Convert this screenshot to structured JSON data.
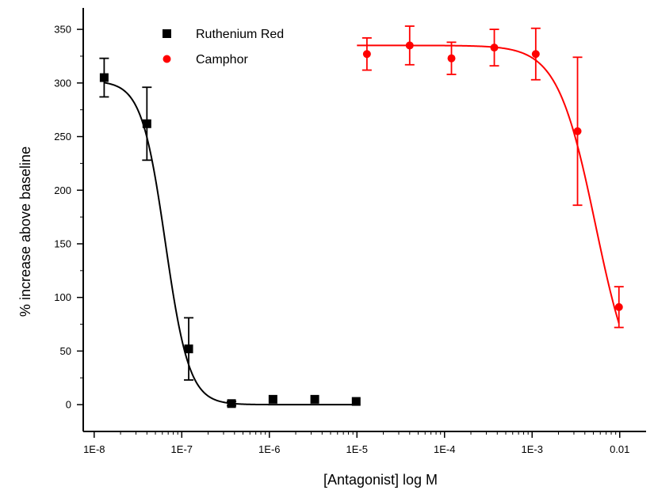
{
  "chart_data": {
    "type": "scatter",
    "title": "",
    "xlabel": "[Antagonist] log M",
    "ylabel": "% increase above baseline",
    "x_scale": "log",
    "xlim": [
      7.5e-09,
      0.02
    ],
    "ylim": [
      -25,
      370
    ],
    "x_ticks": [
      1e-08,
      1e-07,
      1e-06,
      1e-05,
      0.0001,
      0.001,
      0.01
    ],
    "x_tick_labels": [
      "1E-8",
      "1E-7",
      "1E-6",
      "1E-5",
      "1E-4",
      "1E-3",
      "0.01"
    ],
    "y_ticks": [
      0,
      50,
      100,
      150,
      200,
      250,
      300,
      350
    ],
    "y_tick_labels": [
      "0",
      "50",
      "100",
      "150",
      "200",
      "250",
      "300",
      "350"
    ],
    "grid": false,
    "legend_position": "top-left",
    "series": [
      {
        "name": "Ruthenium Red",
        "color": "#000000",
        "marker": "square",
        "points": [
          {
            "x": 1.3e-08,
            "y": 305,
            "err": 18
          },
          {
            "x": 4e-08,
            "y": 262,
            "err": 34
          },
          {
            "x": 1.2e-07,
            "y": 52,
            "err": 29
          },
          {
            "x": 3.7e-07,
            "y": 1,
            "err": 2
          },
          {
            "x": 1.1e-06,
            "y": 5,
            "err": 0
          },
          {
            "x": 3.3e-06,
            "y": 5,
            "err": 0
          },
          {
            "x": 9.8e-06,
            "y": 3,
            "err": 0
          }
        ],
        "fit": {
          "top": 302,
          "bottom": 0,
          "ic50": 6.5e-08,
          "hill": 3.2,
          "x_range": [
            1.3e-08,
            1e-05
          ]
        }
      },
      {
        "name": "Camphor",
        "color": "#ff0000",
        "marker": "circle",
        "points": [
          {
            "x": 1.3e-05,
            "y": 327,
            "err": 15
          },
          {
            "x": 4e-05,
            "y": 335,
            "err": 18
          },
          {
            "x": 0.00012,
            "y": 323,
            "err": 15
          },
          {
            "x": 0.00037,
            "y": 333,
            "err": 17
          },
          {
            "x": 0.0011,
            "y": 327,
            "err": 24
          },
          {
            "x": 0.0033,
            "y": 255,
            "err": 69
          },
          {
            "x": 0.0098,
            "y": 91,
            "err": 19
          }
        ],
        "fit": {
          "top": 335,
          "bottom": 0,
          "ic50": 0.0053,
          "hill": 2.0,
          "x_range": [
            1e-05,
            0.0098
          ]
        }
      }
    ]
  }
}
